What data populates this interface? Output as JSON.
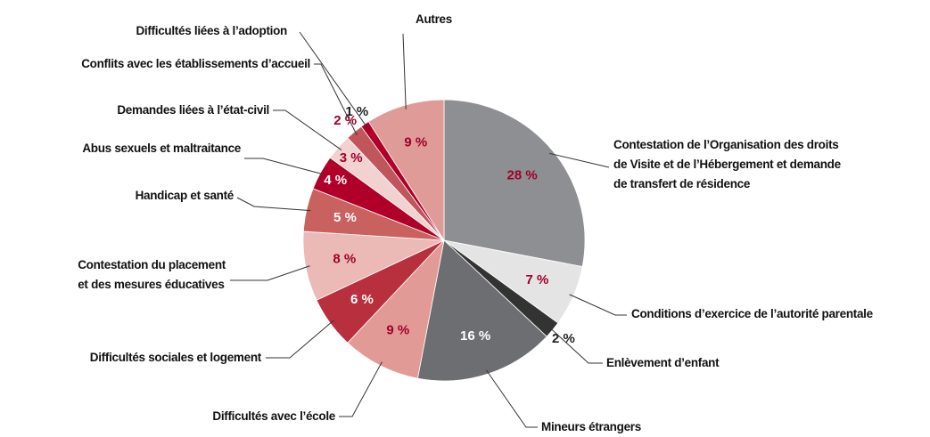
{
  "chart_data": {
    "type": "pie",
    "categories": [
      "Contestation de l’Organisation des droits\nde Visite et de l’Hébergement et demande\nde transfert de résidence",
      "Conditions d’exercice de l’autorité parentale",
      "Enlèvement d’enfant",
      "Mineurs étrangers",
      "Difficultés avec l’école",
      "Difficultés sociales et logement",
      "Contestation du placement\net des mesures éducatives",
      "Handicap et santé",
      "Abus sexuels et maltraitance",
      "Demandes liées à l’état-civil",
      "Conflits avec les établissements d’accueil",
      "Difficultés liées à l’adoption",
      "Autres"
    ],
    "values": [
      28,
      7,
      2,
      16,
      9,
      6,
      8,
      5,
      4,
      3,
      2,
      1,
      9
    ],
    "value_labels": [
      "28 %",
      "7 %",
      "2 %",
      "16 %",
      "9 %",
      "6 %",
      "8 %",
      "5 %",
      "4 %",
      "3 %",
      "2 %",
      "1 %",
      "9 %"
    ],
    "colors": [
      "#8e8f92",
      "#e4e4e5",
      "#333333",
      "#6d6e71",
      "#e29a97",
      "#b8303e",
      "#ebb9b6",
      "#c9625f",
      "#b0002a",
      "#f1d2d0",
      "#c0565b",
      "#b0002a",
      "#de9b98"
    ]
  }
}
